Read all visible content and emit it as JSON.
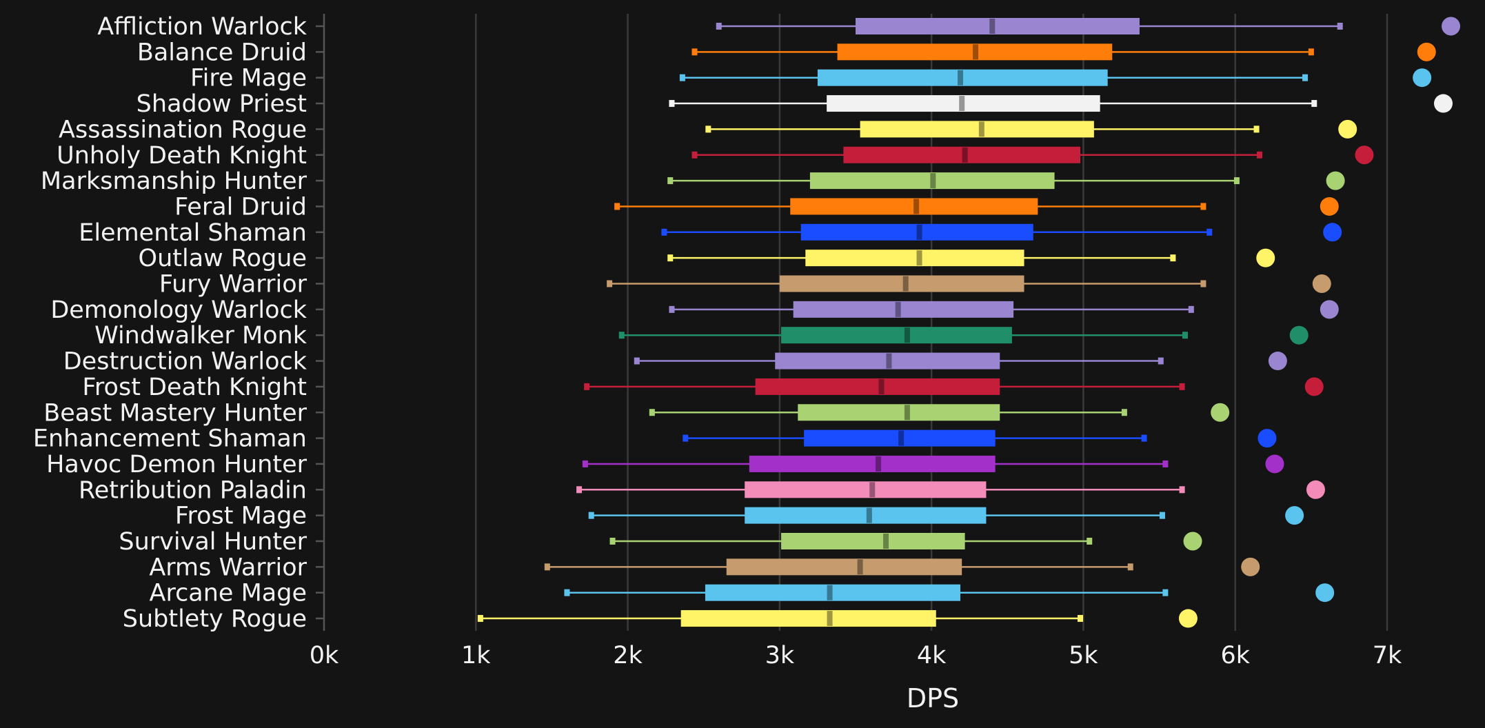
{
  "chart_data": {
    "type": "box",
    "xlabel": "DPS",
    "xlim": [
      0,
      7500
    ],
    "x_ticks": [
      0,
      1000,
      2000,
      3000,
      4000,
      5000,
      6000,
      7000
    ],
    "x_tick_labels": [
      "0k",
      "1k",
      "2k",
      "3k",
      "4k",
      "5k",
      "6k",
      "7k"
    ],
    "grid": "vertical",
    "series": [
      {
        "name": "Affliction Warlock",
        "color": "#9a86d0",
        "min": 2600,
        "q1": 3500,
        "median": 4400,
        "q3": 5370,
        "max": 6690,
        "max_point": 7420
      },
      {
        "name": "Balance Druid",
        "color": "#ff7d0a",
        "min": 2440,
        "q1": 3380,
        "median": 4290,
        "q3": 5190,
        "max": 6500,
        "max_point": 7260
      },
      {
        "name": "Fire Mage",
        "color": "#5ac4ee",
        "min": 2360,
        "q1": 3250,
        "median": 4190,
        "q3": 5160,
        "max": 6460,
        "max_point": 7230
      },
      {
        "name": "Shadow Priest",
        "color": "#f2f2f2",
        "min": 2290,
        "q1": 3310,
        "median": 4200,
        "q3": 5110,
        "max": 6520,
        "max_point": 7370
      },
      {
        "name": "Assassination Rogue",
        "color": "#fff468",
        "min": 2530,
        "q1": 3530,
        "median": 4330,
        "q3": 5070,
        "max": 6140,
        "max_point": 6740
      },
      {
        "name": "Unholy Death Knight",
        "color": "#c41e3a",
        "min": 2440,
        "q1": 3420,
        "median": 4220,
        "q3": 4980,
        "max": 6160,
        "max_point": 6850
      },
      {
        "name": "Marksmanship Hunter",
        "color": "#a9d372",
        "min": 2280,
        "q1": 3200,
        "median": 4010,
        "q3": 4810,
        "max": 6010,
        "max_point": 6660
      },
      {
        "name": "Feral Druid",
        "color": "#ff7d0a",
        "min": 1930,
        "q1": 3070,
        "median": 3900,
        "q3": 4700,
        "max": 5790,
        "max_point": 6620
      },
      {
        "name": "Elemental Shaman",
        "color": "#1a4dff",
        "min": 2240,
        "q1": 3140,
        "median": 3920,
        "q3": 4670,
        "max": 5830,
        "max_point": 6640
      },
      {
        "name": "Outlaw Rogue",
        "color": "#fff468",
        "min": 2280,
        "q1": 3170,
        "median": 3920,
        "q3": 4610,
        "max": 5590,
        "max_point": 6200
      },
      {
        "name": "Fury Warrior",
        "color": "#c69b6d",
        "min": 1880,
        "q1": 3000,
        "median": 3830,
        "q3": 4610,
        "max": 5790,
        "max_point": 6570
      },
      {
        "name": "Demonology Warlock",
        "color": "#9a86d0",
        "min": 2290,
        "q1": 3090,
        "median": 3780,
        "q3": 4540,
        "max": 5710,
        "max_point": 6620
      },
      {
        "name": "Windwalker Monk",
        "color": "#208f69",
        "min": 1960,
        "q1": 3010,
        "median": 3840,
        "q3": 4530,
        "max": 5670,
        "max_point": 6420
      },
      {
        "name": "Destruction Warlock",
        "color": "#9a86d0",
        "min": 2060,
        "q1": 2970,
        "median": 3720,
        "q3": 4450,
        "max": 5510,
        "max_point": 6280
      },
      {
        "name": "Frost Death Knight",
        "color": "#c41e3a",
        "min": 1730,
        "q1": 2840,
        "median": 3670,
        "q3": 4450,
        "max": 5650,
        "max_point": 6520
      },
      {
        "name": "Beast Mastery Hunter",
        "color": "#a9d372",
        "min": 2160,
        "q1": 3120,
        "median": 3840,
        "q3": 4450,
        "max": 5270,
        "max_point": 5900
      },
      {
        "name": "Enhancement Shaman",
        "color": "#1a4dff",
        "min": 2380,
        "q1": 3160,
        "median": 3800,
        "q3": 4420,
        "max": 5400,
        "max_point": 6210
      },
      {
        "name": "Havoc Demon Hunter",
        "color": "#a330c9",
        "min": 1720,
        "q1": 2800,
        "median": 3650,
        "q3": 4420,
        "max": 5540,
        "max_point": 6260
      },
      {
        "name": "Retribution Paladin",
        "color": "#f48cba",
        "min": 1680,
        "q1": 2770,
        "median": 3610,
        "q3": 4360,
        "max": 5650,
        "max_point": 6530
      },
      {
        "name": "Frost Mage",
        "color": "#5ac4ee",
        "min": 1760,
        "q1": 2770,
        "median": 3590,
        "q3": 4360,
        "max": 5520,
        "max_point": 6390
      },
      {
        "name": "Survival Hunter",
        "color": "#a9d372",
        "min": 1900,
        "q1": 3010,
        "median": 3700,
        "q3": 4220,
        "max": 5040,
        "max_point": 5720
      },
      {
        "name": "Arms Warrior",
        "color": "#c69b6d",
        "min": 1470,
        "q1": 2650,
        "median": 3530,
        "q3": 4200,
        "max": 5310,
        "max_point": 6100
      },
      {
        "name": "Arcane Mage",
        "color": "#5ac4ee",
        "min": 1600,
        "q1": 2510,
        "median": 3330,
        "q3": 4190,
        "max": 5540,
        "max_point": 6590
      },
      {
        "name": "Subtlety Rogue",
        "color": "#fff468",
        "min": 1030,
        "q1": 2350,
        "median": 3330,
        "q3": 4030,
        "max": 4980,
        "max_point": 5690
      }
    ]
  }
}
